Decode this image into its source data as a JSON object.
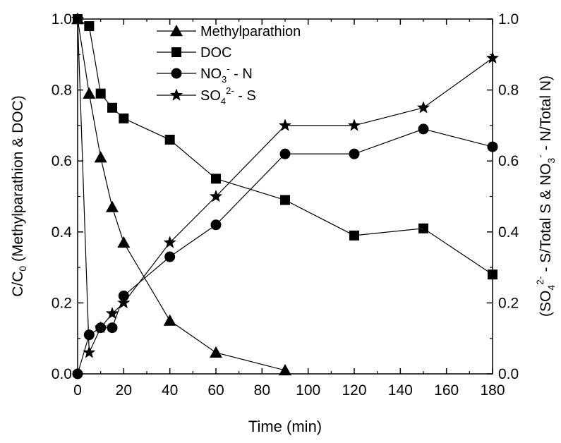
{
  "chart_data": {
    "type": "line",
    "xlabel": "Time (min)",
    "ylabel_left": "C/C0 (Methylparathion & DOC)",
    "ylabel_right": "(SO42- - S/Total S & NO3- - N/Total N)",
    "xlim": [
      0,
      180
    ],
    "ylim_left": [
      0,
      1.0
    ],
    "ylim_right": [
      0,
      1.0
    ],
    "x_ticks": [
      "0",
      "20",
      "40",
      "60",
      "80",
      "100",
      "120",
      "140",
      "160",
      "180"
    ],
    "y_ticks_left": [
      "0.0",
      "0.2",
      "0.4",
      "0.6",
      "0.8",
      "1.0"
    ],
    "y_ticks_right": [
      "0.0",
      "0.2",
      "0.4",
      "0.6",
      "0.8",
      "1.0"
    ],
    "grid": false,
    "legend_position": "top-center",
    "series": [
      {
        "name": "Methylparathion",
        "marker": "triangle",
        "axis": "left",
        "x": [
          0,
          5,
          10,
          15,
          20,
          40,
          60,
          90
        ],
        "y": [
          1.0,
          0.79,
          0.61,
          0.47,
          0.37,
          0.15,
          0.06,
          0.01
        ]
      },
      {
        "name": "DOC",
        "marker": "square",
        "axis": "left",
        "x": [
          0,
          5,
          10,
          15,
          20,
          40,
          60,
          90,
          120,
          150,
          180
        ],
        "y": [
          1.0,
          0.98,
          0.79,
          0.75,
          0.72,
          0.66,
          0.55,
          0.49,
          0.39,
          0.41,
          0.28
        ]
      },
      {
        "name": "NO3- - N",
        "marker": "circle",
        "axis": "right",
        "x": [
          0,
          5,
          10,
          15,
          20,
          40,
          60,
          90,
          120,
          150,
          180
        ],
        "y": [
          0.0,
          0.11,
          0.13,
          0.13,
          0.22,
          0.33,
          0.42,
          0.62,
          0.62,
          0.69,
          0.64
        ]
      },
      {
        "name": "SO42- - S",
        "marker": "star",
        "axis": "right",
        "x": [
          0,
          5,
          10,
          15,
          20,
          40,
          60,
          90,
          120,
          150,
          180
        ],
        "y": [
          1.0,
          0.06,
          0.13,
          0.17,
          0.2,
          0.37,
          0.5,
          0.7,
          0.7,
          0.75,
          0.89
        ]
      }
    ]
  },
  "legend": [
    {
      "label": "Methylparathion",
      "marker": "triangle"
    },
    {
      "label": "DOC",
      "marker": "square"
    },
    {
      "label_main": "NO",
      "sub": "3",
      "sup": "-",
      "tail": " - N",
      "marker": "circle"
    },
    {
      "label_main": "SO",
      "sub": "4",
      "sup": "2-",
      "tail": " - S",
      "marker": "star"
    }
  ]
}
